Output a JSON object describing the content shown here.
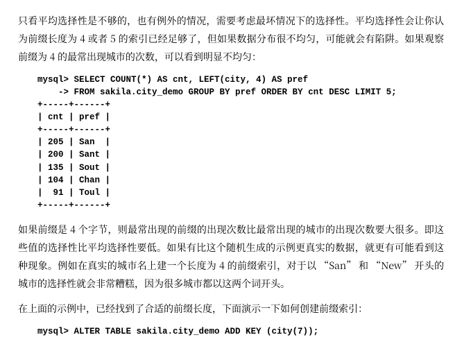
{
  "paragraphs": {
    "p1": "只看平均选择性是不够的，也有例外的情况，需要考虑最坏情况下的选择性。平均选择性会让你认为前缀长度为 4 或者 5 的索引已经足够了，但如果数据分布很不均匀，可能就会有陷阱。如果观察前缀为 4 的最常出现城市的次数，可以看到明显不均匀：",
    "p2": "如果前缀是 4 个字节，则最常出现的前缀的出现次数比最常出现的城市的出现次数要大很多。即这些值的选择性比平均选择性要低。如果有比这个随机生成的示例更真实的数据，就更有可能看到这种现象。例如在真实的城市名上建一个长度为 4 的前缀索引，对于以 “San” 和 “New” 开头的城市的选择性就会非常糟糕，因为很多城市都以这两个词开头。",
    "p3": "在上面的示例中，已经找到了合适的前缀长度，下面演示一下如何创建前缀索引："
  },
  "query1": {
    "prompt_line1": "mysql> SELECT COUNT(*) AS cnt, LEFT(city, 4) AS pref",
    "prompt_line2": "    -> FROM sakila.city_demo GROUP BY pref ORDER BY cnt DESC LIMIT 5;",
    "border": "+-----+------+",
    "header": "| cnt | pref |",
    "rows": [
      "| 205 | San  |",
      "| 200 | Sant |",
      "| 135 | Sout |",
      "| 104 | Chan |",
      "|  91 | Toul |"
    ]
  },
  "query2": {
    "line": "mysql> ALTER TABLE sakila.city_demo ADD KEY (city(7));"
  }
}
